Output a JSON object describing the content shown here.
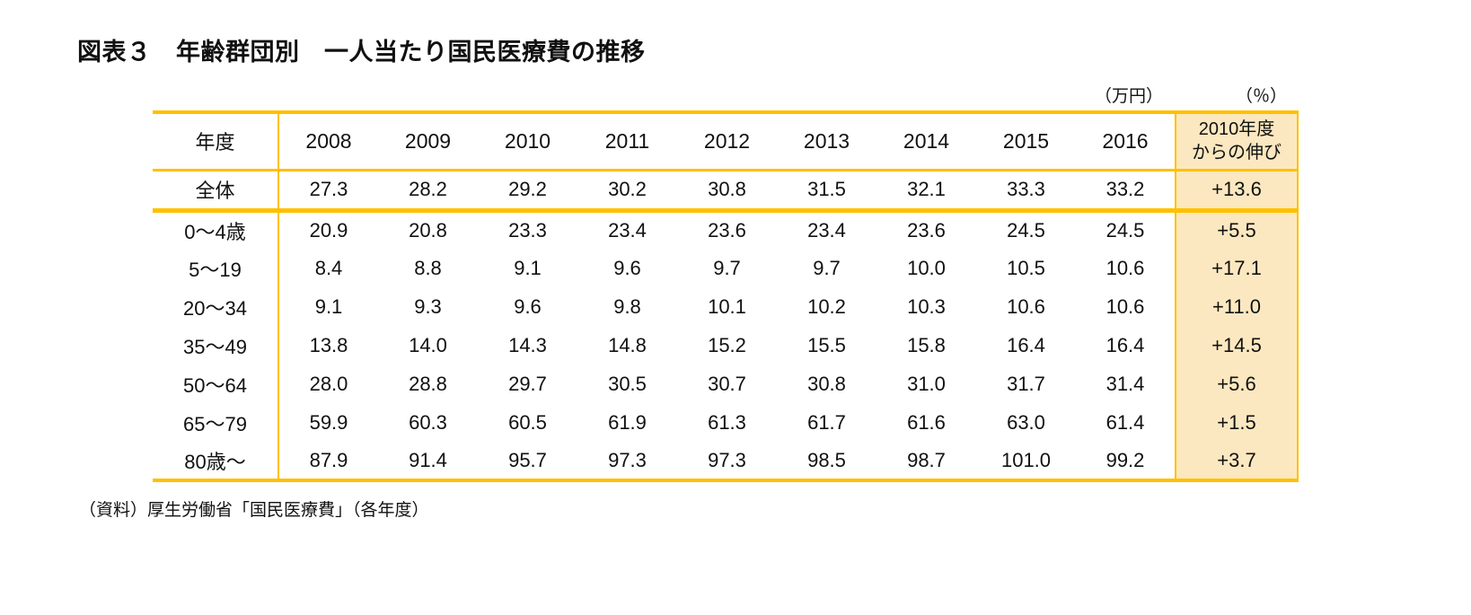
{
  "colors": {
    "accent": "#FFC000",
    "highlight_bg": "#FCE8C0"
  },
  "chart_data": {
    "type": "table",
    "title": "図表３　年齢群団別　一人当たり国民医療費の推移",
    "unit_values": "（万円）",
    "unit_growth": "（％）",
    "source": "（資料）厚生労働省「国民医療費」（各年度）",
    "header": {
      "year_label": "年度",
      "years": [
        "2008",
        "2009",
        "2010",
        "2011",
        "2012",
        "2013",
        "2014",
        "2015",
        "2016"
      ],
      "growth_label_lines": [
        "2010年度",
        "からの伸び"
      ],
      "growth_label": "2010年度からの伸び"
    },
    "columns": [
      "年度",
      "2008",
      "2009",
      "2010",
      "2011",
      "2012",
      "2013",
      "2014",
      "2015",
      "2016",
      "2010年度からの伸び"
    ],
    "rows": [
      {
        "label": "全体",
        "values": [
          "27.3",
          "28.2",
          "29.2",
          "30.2",
          "30.8",
          "31.5",
          "32.1",
          "33.3",
          "33.2"
        ],
        "growth": "+13.6"
      },
      {
        "label": "0～4歳",
        "values": [
          "20.9",
          "20.8",
          "23.3",
          "23.4",
          "23.6",
          "23.4",
          "23.6",
          "24.5",
          "24.5"
        ],
        "growth": "+5.5"
      },
      {
        "label": "5～19",
        "values": [
          "8.4",
          "8.8",
          "9.1",
          "9.6",
          "9.7",
          "9.7",
          "10.0",
          "10.5",
          "10.6"
        ],
        "growth": "+17.1"
      },
      {
        "label": "20～34",
        "values": [
          "9.1",
          "9.3",
          "9.6",
          "9.8",
          "10.1",
          "10.2",
          "10.3",
          "10.6",
          "10.6"
        ],
        "growth": "+11.0"
      },
      {
        "label": "35～49",
        "values": [
          "13.8",
          "14.0",
          "14.3",
          "14.8",
          "15.2",
          "15.5",
          "15.8",
          "16.4",
          "16.4"
        ],
        "growth": "+14.5"
      },
      {
        "label": "50～64",
        "values": [
          "28.0",
          "28.8",
          "29.7",
          "30.5",
          "30.7",
          "30.8",
          "31.0",
          "31.7",
          "31.4"
        ],
        "growth": "+5.6"
      },
      {
        "label": "65～79",
        "values": [
          "59.9",
          "60.3",
          "60.5",
          "61.9",
          "61.3",
          "61.7",
          "61.6",
          "63.0",
          "61.4"
        ],
        "growth": "+1.5"
      },
      {
        "label": "80歳～",
        "values": [
          "87.9",
          "91.4",
          "95.7",
          "97.3",
          "97.3",
          "98.5",
          "98.7",
          "101.0",
          "99.2"
        ],
        "growth": "+3.7"
      }
    ]
  }
}
